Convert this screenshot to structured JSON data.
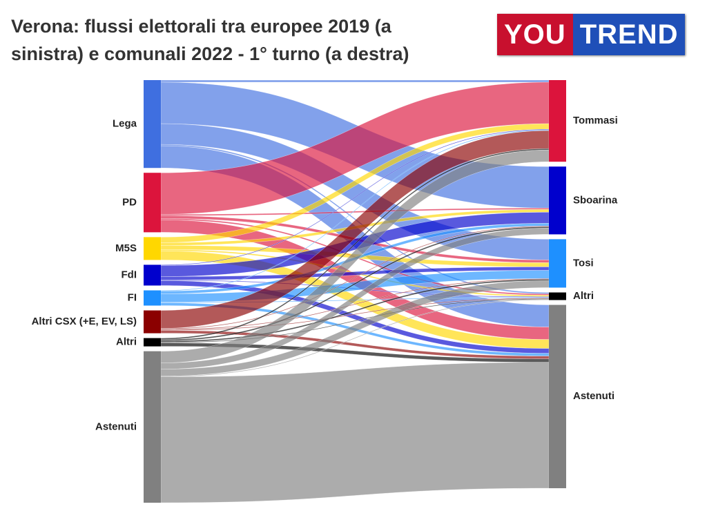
{
  "logo": {
    "left": "YOU",
    "right": "TREND"
  },
  "chart_data": {
    "type": "sankey",
    "title": "Verona: flussi elettorali tra europee 2019 (a sinistra) e comunali 2022 - 1° turno (a destra)",
    "sources": [
      {
        "name": "Lega",
        "color": "#3f6fe0"
      },
      {
        "name": "PD",
        "color": "#dc143c"
      },
      {
        "name": "M5S",
        "color": "#ffd700"
      },
      {
        "name": "FdI",
        "color": "#0000cd"
      },
      {
        "name": "FI",
        "color": "#1e90ff"
      },
      {
        "name": "Altri CSX (+E, EV, LS)",
        "color": "#8b0000"
      },
      {
        "name": "Altri",
        "color": "#000000"
      },
      {
        "name": "Astenuti",
        "color": "#808080"
      }
    ],
    "targets": [
      {
        "name": "Tommasi",
        "color": "#dc143c"
      },
      {
        "name": "Sboarina",
        "color": "#0000cd"
      },
      {
        "name": "Tosi",
        "color": "#1e90ff"
      },
      {
        "name": "Altri",
        "color": "#000000"
      },
      {
        "name": "Astenuti",
        "color": "#808080"
      }
    ],
    "flows": [
      [
        3,
        60,
        30,
        2,
        32
      ],
      [
        60,
        2,
        4,
        2,
        18
      ],
      [
        8,
        4,
        6,
        2,
        13
      ],
      [
        1,
        16,
        5,
        1,
        7
      ],
      [
        1,
        4,
        12,
        1,
        4
      ],
      [
        26,
        1,
        1,
        1,
        4
      ],
      [
        2,
        2,
        2,
        1,
        5
      ],
      [
        17,
        9,
        10,
        1,
        182
      ]
    ]
  }
}
